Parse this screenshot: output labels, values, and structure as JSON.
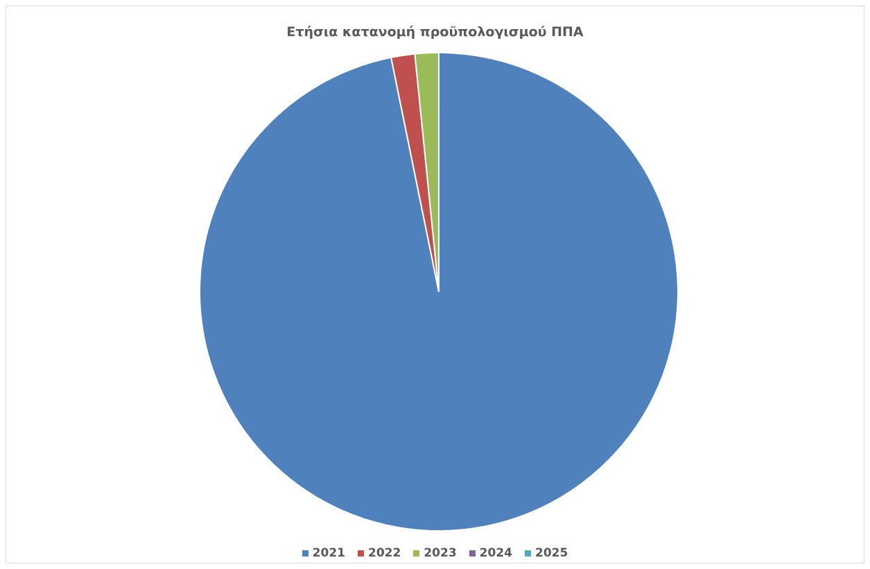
{
  "chart_data": {
    "type": "pie",
    "title": "Ετήσια κατανομή προϋπολογισμού ΠΠΑ",
    "categories": [
      "2021",
      "2022",
      "2023",
      "2024",
      "2025"
    ],
    "values": [
      96.8,
      1.6,
      1.6,
      0,
      0
    ],
    "colors": [
      "#4f81bd",
      "#c0504d",
      "#9bbb59",
      "#8064a2",
      "#4bacc6"
    ],
    "legend_position": "bottom"
  }
}
